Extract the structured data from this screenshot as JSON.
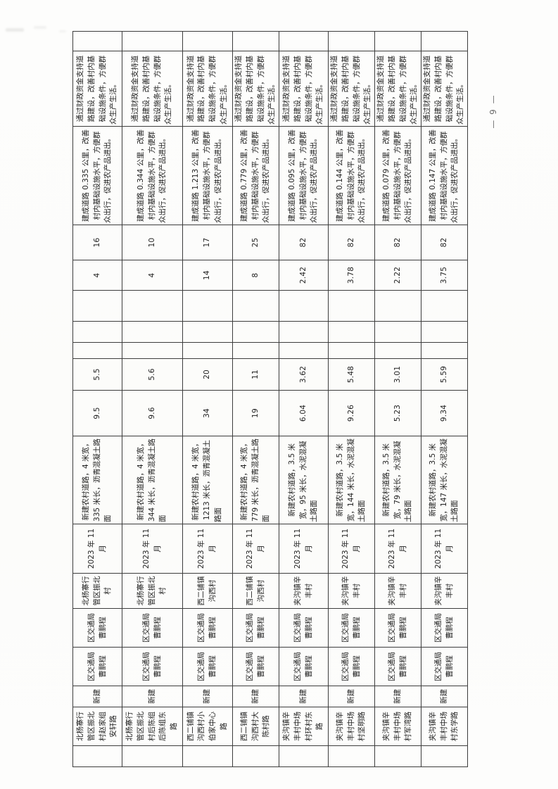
{
  "page": {
    "page_number": "— 9 —"
  },
  "table": {
    "note": "scanned rural-road project schedule table, rotated 90° on the page; no header row visible on this page",
    "columns_per_row": 18,
    "rows": [
      {
        "cells": [
          "",
          "北杨寨行管区振北村赵家组安轩路",
          "新建",
          "区交通局\n曹鹏程",
          "区交通局\n曹鹏程",
          "北杨寨行管区振北村",
          "2023 年 11 月",
          "新建农村道路，4 米宽，335 米长，沥青混凝土路面",
          "9.5",
          "5.5",
          "",
          "",
          "",
          "4",
          "16",
          "建成道路 0.335 公里，改善村内基础设施水平，方便群众出行，促进农产品进出。",
          "通过财政资金支持道路建设，改善村内基础设施条件，方便群众生产生活。",
          ""
        ]
      },
      {
        "cells": [
          "",
          "北杨寨行管区振北村后陈组后陈组东路",
          "新建",
          "区交通局\n曹鹏程",
          "区交通局\n曹鹏程",
          "北杨寨行管区振北村",
          "2023 年 11 月",
          "新建农村道路，4 米宽，344 米长，沥青混凝土路面",
          "9.6",
          "5.6",
          "",
          "",
          "",
          "4",
          "10",
          "建成道路 0.344 公里，改善村内基础设施水平，方便群众出行，促进农产品进出。",
          "通过财政资金支持道路建设，改善村内基础设施条件，方便群众生产生活。",
          ""
        ]
      },
      {
        "cells": [
          "",
          "西二铺镇沟西村小伯家中心路",
          "新建",
          "区交通局\n曹鹏程",
          "区交通局\n曹鹏程",
          "西二铺镇沟西村",
          "2023 年 11 月",
          "新建农村道路，4 米宽，1213 米长，沥青混凝土路面",
          "34",
          "20",
          "",
          "",
          "",
          "14",
          "17",
          "建成道路 1.213 公里，改善村内基础设施水平，方便群众出行，促进农产品进出。",
          "通过财政资金支持道路建设，改善村内基础设施条件，方便群众生产生活。",
          ""
        ]
      },
      {
        "cells": [
          "",
          "西二铺镇沟西村大陈村路",
          "新建",
          "区交通局\n曹鹏程",
          "区交通局\n曹鹏程",
          "西二铺镇沟西村",
          "2023 年 11 月",
          "新建农村道路，4 米宽，779 米长，沥青混凝土路面",
          "19",
          "11",
          "",
          "",
          "",
          "8",
          "25",
          "建成道路 0.779 公里，改善村内基础设施水平，方便群众出行，促进农产品进出。",
          "通过财政资金支持道路建设，改善村内基础设施条件，方便群众生产生活。",
          ""
        ]
      },
      {
        "cells": [
          "",
          "夹沟镇辛丰村中场村环村东路",
          "新建",
          "区交通局\n曹鹏程",
          "区交通局\n曹鹏程",
          "夹沟镇辛丰村",
          "2023 年 11 月",
          "新建农村道路，3.5 米宽，95 米长，水泥混凝土路面",
          "6.04",
          "3.62",
          "",
          "",
          "",
          "2.42",
          "82",
          "建成道路 0.095 公里，改善村内基础设施水平，方便群众出行，促进农产品进出。",
          "通过财政资金支持道路建设，改善村内基础设施条件，方便群众生产生活。",
          ""
        ]
      },
      {
        "cells": [
          "",
          "夹沟镇辛丰村中场村坚明路",
          "新建",
          "区交通局\n曹鹏程",
          "区交通局\n曹鹏程",
          "夹沟镇辛丰村",
          "2023 年 11 月",
          "新建农村道路，3.5 米宽，144 米长，水泥混凝土路面",
          "9.26",
          "5.48",
          "",
          "",
          "",
          "3.78",
          "82",
          "建成道路 0.144 公里，改善村内基础设施水平，方便群众出行，促进农产品进出。",
          "通过财政资金支持道路建设，改善村内基础设施条件，方便群众生产生活。",
          ""
        ]
      },
      {
        "cells": [
          "",
          "夹沟镇辛丰村中场村军湾路",
          "新建",
          "区交通局\n曹鹏程",
          "区交通局\n曹鹏程",
          "夹沟镇辛丰村",
          "2023 年 11 月",
          "新建农村道路，3.5 米宽，79 米长，水泥混凝土路面",
          "5.23",
          "3.01",
          "",
          "",
          "",
          "2.22",
          "82",
          "建成道路 0.079 公里，改善村内基础设施水平，方便群众出行，促进农产品进出。",
          "通过财政资金支持道路建设，改善村内基础设施条件，方便群众生产生活。",
          ""
        ]
      },
      {
        "cells": [
          "",
          "夹沟镇辛丰村中场村东学路",
          "新建",
          "区交通局\n曹鹏程",
          "区交通局\n曹鹏程",
          "夹沟镇辛丰村",
          "2023 年 11 月",
          "新建农村道路，3.5 米宽，147 米长，水泥混凝土路面",
          "9.34",
          "5.59",
          "",
          "",
          "",
          "3.75",
          "82",
          "建成道路 0.147 公里，改善村内基础设施水平，方便群众出行，促进农产品进出。",
          "通过财政资金支持道路建设，改善村内基础设施条件，方便群众生产生活。",
          ""
        ]
      }
    ]
  }
}
